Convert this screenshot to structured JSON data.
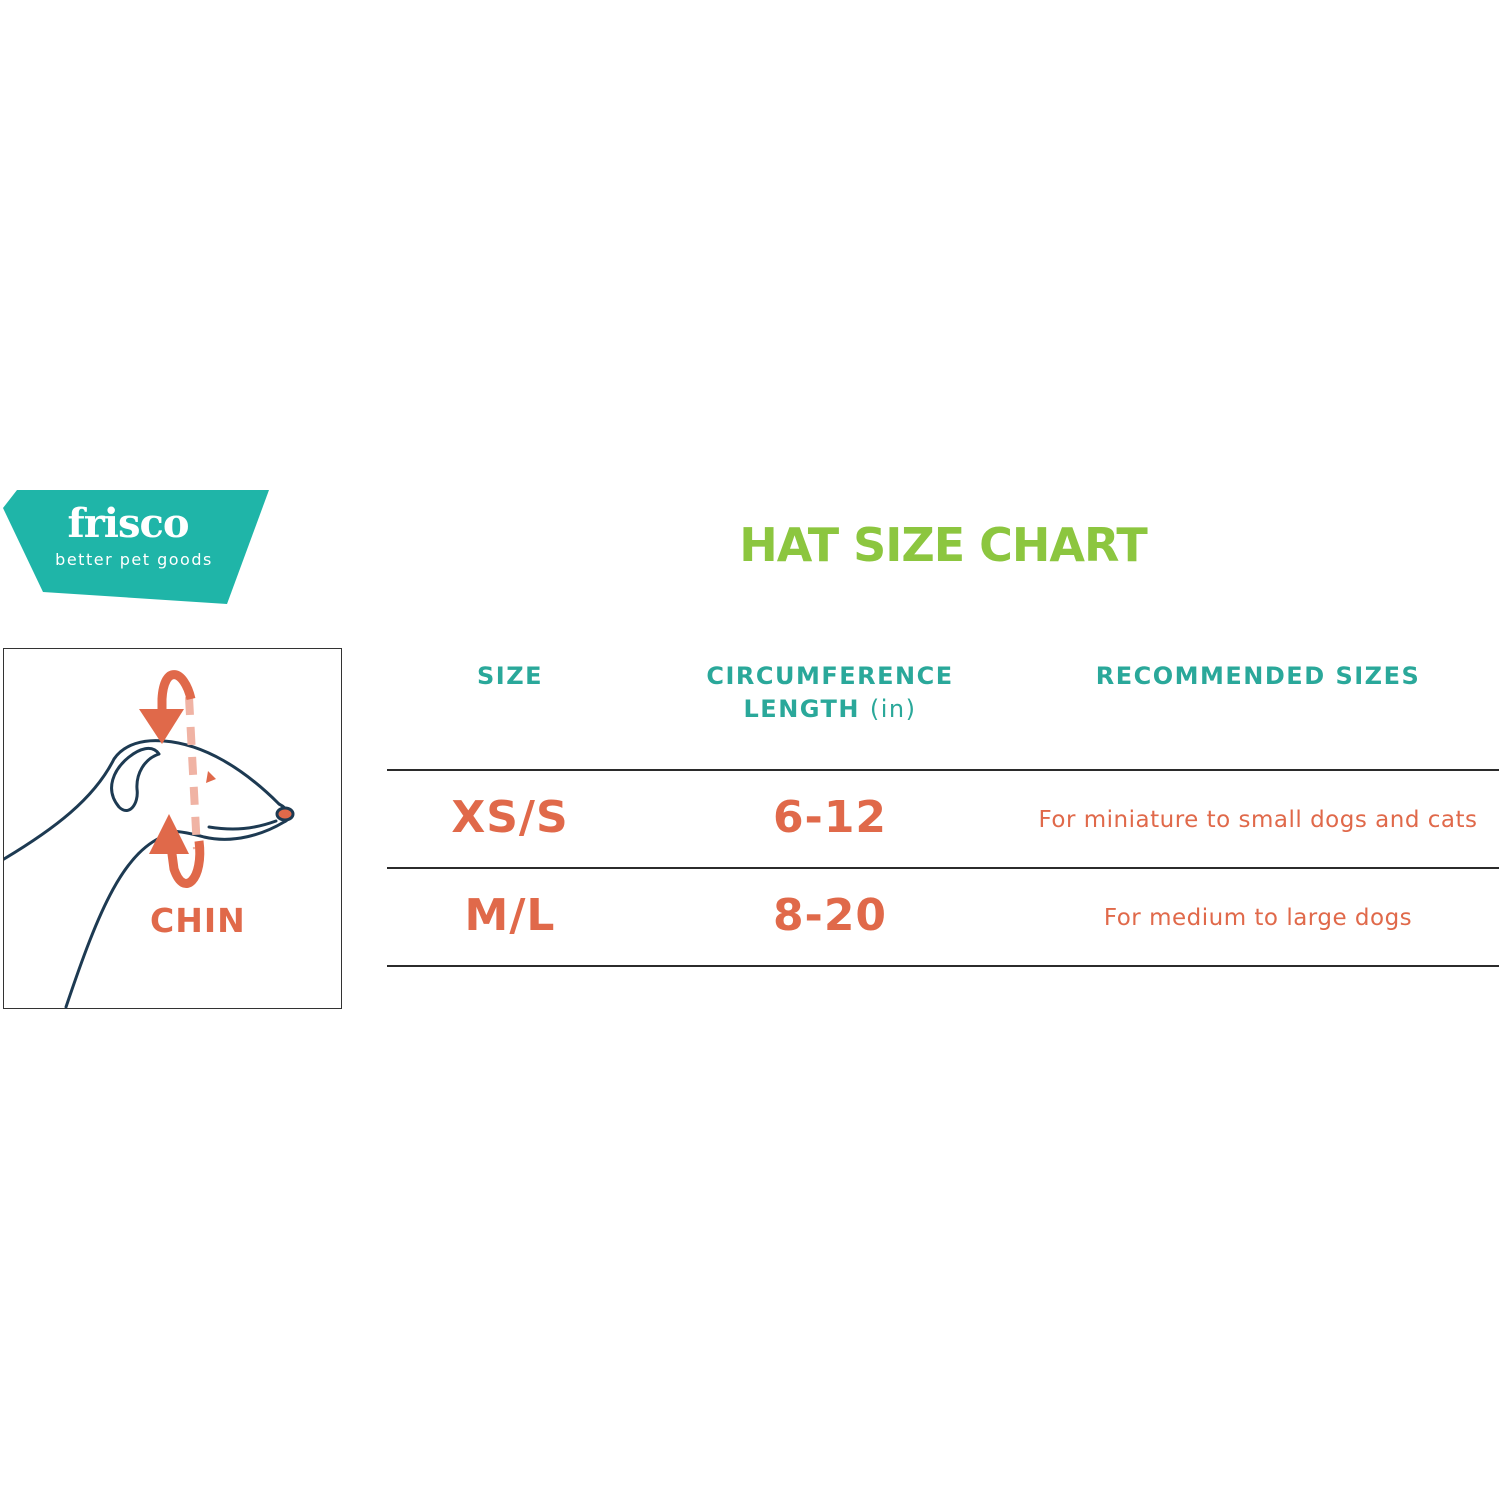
{
  "logo": {
    "name": "frisco",
    "tagline": "better pet goods",
    "color": "#1fb5a8"
  },
  "title": "HAT SIZE CHART",
  "diagram": {
    "label": "CHIN"
  },
  "table": {
    "headers": {
      "size": "SIZE",
      "circumference_line1": "CIRCUMFERENCE",
      "circumference_line2": "LENGTH",
      "circumference_unit": "(in)",
      "recommended": "RECOMMENDED SIZES"
    },
    "rows": [
      {
        "size": "XS/S",
        "length": "6-12",
        "recommended": "For miniature to small dogs and cats"
      },
      {
        "size": "M/L",
        "length": "8-20",
        "recommended": "For medium to large dogs"
      }
    ]
  },
  "colors": {
    "title": "#8cc63f",
    "header": "#2aa89a",
    "values": "#e0694a",
    "outline": "#1d3a52"
  }
}
